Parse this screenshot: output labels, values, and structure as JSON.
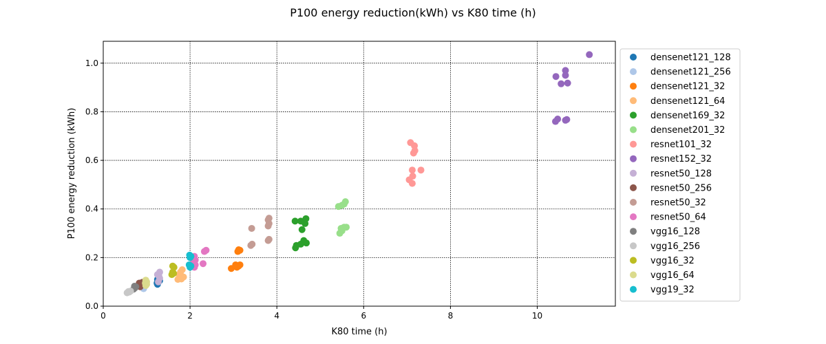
{
  "chart_data": {
    "type": "scatter",
    "title": "P100 energy reduction(kWh) vs K80 time (h)",
    "xlabel": "K80 time (h)",
    "ylabel": "P100 energy reduction (kWh)",
    "xlim": [
      0,
      11.8
    ],
    "ylim": [
      0,
      1.09
    ],
    "xticks": [
      0,
      2,
      4,
      6,
      8,
      10
    ],
    "yticks": [
      0.0,
      0.2,
      0.4,
      0.6,
      0.8,
      1.0
    ],
    "xtick_labels": [
      "0",
      "2",
      "4",
      "6",
      "8",
      "10"
    ],
    "ytick_labels": [
      "0.0",
      "0.2",
      "0.4",
      "0.6",
      "0.8",
      "1.0"
    ],
    "grid": true,
    "legend_position": "right-outside",
    "series": [
      {
        "name": "densenet121_128",
        "color": "#1f77b4",
        "points": [
          [
            1.25,
            0.09
          ],
          [
            1.27,
            0.1
          ],
          [
            1.25,
            0.11
          ],
          [
            1.28,
            0.115
          ],
          [
            1.3,
            0.105
          ],
          [
            1.24,
            0.095
          ]
        ]
      },
      {
        "name": "densenet121_256",
        "color": "#aec7e8",
        "points": [
          [
            0.93,
            0.072
          ],
          [
            0.95,
            0.08
          ],
          [
            0.9,
            0.085
          ],
          [
            0.97,
            0.09
          ],
          [
            0.92,
            0.078
          ]
        ]
      },
      {
        "name": "densenet121_32",
        "color": "#ff7f0e",
        "points": [
          [
            2.95,
            0.155
          ],
          [
            3.08,
            0.16
          ],
          [
            3.12,
            0.165
          ],
          [
            3.05,
            0.17
          ],
          [
            3.15,
            0.17
          ],
          [
            3.1,
            0.225
          ],
          [
            3.15,
            0.23
          ],
          [
            3.12,
            0.232
          ]
        ]
      },
      {
        "name": "densenet121_64",
        "color": "#ffbb78",
        "points": [
          [
            1.72,
            0.11
          ],
          [
            1.8,
            0.112
          ],
          [
            1.85,
            0.12
          ],
          [
            1.75,
            0.13
          ],
          [
            1.82,
            0.15
          ],
          [
            1.78,
            0.14
          ]
        ]
      },
      {
        "name": "densenet169_32",
        "color": "#2ca02c",
        "points": [
          [
            4.43,
            0.24
          ],
          [
            4.45,
            0.25
          ],
          [
            4.55,
            0.255
          ],
          [
            4.62,
            0.27
          ],
          [
            4.68,
            0.26
          ],
          [
            4.58,
            0.315
          ],
          [
            4.65,
            0.34
          ],
          [
            4.42,
            0.35
          ],
          [
            4.55,
            0.35
          ],
          [
            4.67,
            0.36
          ]
        ]
      },
      {
        "name": "densenet201_32",
        "color": "#98df8a",
        "points": [
          [
            5.45,
            0.3
          ],
          [
            5.5,
            0.31
          ],
          [
            5.48,
            0.32
          ],
          [
            5.55,
            0.325
          ],
          [
            5.6,
            0.325
          ],
          [
            5.42,
            0.41
          ],
          [
            5.5,
            0.415
          ],
          [
            5.55,
            0.42
          ],
          [
            5.58,
            0.43
          ]
        ]
      },
      {
        "name": "resnet101_32",
        "color": "#ff9896",
        "points": [
          [
            7.05,
            0.52
          ],
          [
            7.12,
            0.505
          ],
          [
            7.13,
            0.535
          ],
          [
            7.12,
            0.56
          ],
          [
            7.32,
            0.56
          ],
          [
            7.15,
            0.63
          ],
          [
            7.18,
            0.64
          ],
          [
            7.17,
            0.66
          ],
          [
            7.08,
            0.673
          ]
        ]
      },
      {
        "name": "resnet152_32",
        "color": "#9467bd",
        "points": [
          [
            10.42,
            0.76
          ],
          [
            10.47,
            0.77
          ],
          [
            10.65,
            0.765
          ],
          [
            10.68,
            0.768
          ],
          [
            10.43,
            0.945
          ],
          [
            10.55,
            0.915
          ],
          [
            10.7,
            0.918
          ],
          [
            10.65,
            0.95
          ],
          [
            10.65,
            0.97
          ],
          [
            11.2,
            1.035
          ]
        ]
      },
      {
        "name": "resnet50_128",
        "color": "#c5b0d5",
        "points": [
          [
            1.27,
            0.1
          ],
          [
            1.3,
            0.115
          ],
          [
            1.28,
            0.125
          ],
          [
            1.25,
            0.13
          ],
          [
            1.3,
            0.14
          ]
        ]
      },
      {
        "name": "resnet50_256",
        "color": "#8c564b",
        "points": [
          [
            0.85,
            0.08
          ],
          [
            0.88,
            0.09
          ],
          [
            0.83,
            0.095
          ],
          [
            0.9,
            0.098
          ],
          [
            0.86,
            0.085
          ]
        ]
      },
      {
        "name": "resnet50_32",
        "color": "#c49c94",
        "points": [
          [
            3.4,
            0.25
          ],
          [
            3.43,
            0.255
          ],
          [
            3.8,
            0.27
          ],
          [
            3.82,
            0.275
          ],
          [
            3.42,
            0.32
          ],
          [
            3.8,
            0.33
          ],
          [
            3.82,
            0.34
          ],
          [
            3.8,
            0.355
          ],
          [
            3.82,
            0.362
          ]
        ]
      },
      {
        "name": "resnet50_64",
        "color": "#e377c2",
        "points": [
          [
            2.1,
            0.16
          ],
          [
            2.12,
            0.17
          ],
          [
            2.08,
            0.18
          ],
          [
            2.12,
            0.19
          ],
          [
            2.1,
            0.205
          ],
          [
            2.3,
            0.175
          ],
          [
            2.33,
            0.225
          ],
          [
            2.37,
            0.23
          ]
        ]
      },
      {
        "name": "vgg16_128",
        "color": "#7f7f7f",
        "points": [
          [
            0.7,
            0.07
          ],
          [
            0.73,
            0.075
          ],
          [
            0.75,
            0.08
          ],
          [
            0.72,
            0.082
          ]
        ]
      },
      {
        "name": "vgg16_256",
        "color": "#c7c7c7",
        "points": [
          [
            0.55,
            0.055
          ],
          [
            0.6,
            0.058
          ],
          [
            0.63,
            0.062
          ],
          [
            0.58,
            0.06
          ]
        ]
      },
      {
        "name": "vgg16_32",
        "color": "#bcbd22",
        "points": [
          [
            1.58,
            0.13
          ],
          [
            1.62,
            0.135
          ],
          [
            1.6,
            0.14
          ],
          [
            1.63,
            0.16
          ],
          [
            1.6,
            0.165
          ]
        ]
      },
      {
        "name": "vgg16_64",
        "color": "#dbdb8d",
        "points": [
          [
            0.98,
            0.085
          ],
          [
            1.0,
            0.09
          ],
          [
            0.97,
            0.095
          ],
          [
            1.0,
            0.1
          ],
          [
            0.98,
            0.107
          ]
        ]
      },
      {
        "name": "vgg19_32",
        "color": "#17becf",
        "points": [
          [
            2.0,
            0.16
          ],
          [
            2.02,
            0.165
          ],
          [
            1.98,
            0.17
          ],
          [
            2.0,
            0.2
          ],
          [
            2.02,
            0.205
          ],
          [
            1.99,
            0.21
          ]
        ]
      }
    ]
  }
}
